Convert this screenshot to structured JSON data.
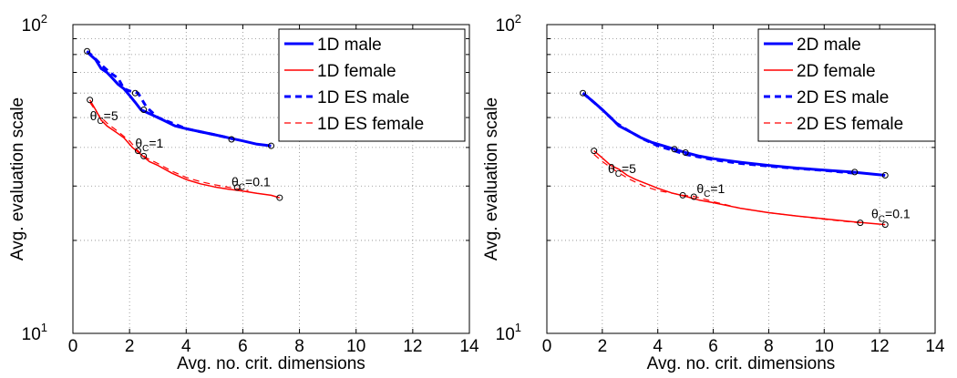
{
  "chart_data": [
    {
      "type": "line",
      "xlabel": "Avg. no. crit. dimensions",
      "ylabel": "Avg. evaluation scale",
      "xlim": [
        0,
        14
      ],
      "ylim": [
        10,
        100
      ],
      "yscale": "log",
      "grid": "dotted",
      "legend": "top-right",
      "xticks": [
        "0",
        "2",
        "4",
        "6",
        "8",
        "10",
        "12",
        "14"
      ],
      "yticks": [
        {
          "base": "10",
          "exp": "1"
        },
        {
          "base": "10",
          "exp": "2"
        }
      ],
      "colors": {
        "male": "#0000ff",
        "female": "#ff0000"
      },
      "series": [
        {
          "name": "1D male",
          "group": "male",
          "dash": "solid",
          "width": 3,
          "x": [
            0.5,
            0.6,
            0.8,
            1.0,
            1.2,
            1.4,
            1.6,
            1.8,
            2.0,
            2.2,
            2.4,
            2.8,
            3.2,
            3.6,
            4.0,
            4.5,
            5.0,
            5.5,
            6.0,
            6.5,
            7.0
          ],
          "y": [
            82,
            80,
            77,
            72,
            70,
            67,
            64,
            62,
            59,
            56,
            53,
            51,
            49,
            47,
            46,
            45,
            44,
            43,
            42,
            41,
            40.5
          ]
        },
        {
          "name": "1D female",
          "group": "female",
          "dash": "solid",
          "width": 1.5,
          "x": [
            0.6,
            0.8,
            1.0,
            1.2,
            1.5,
            1.8,
            2.1,
            2.4,
            2.7,
            3.0,
            3.5,
            4.0,
            4.5,
            5.0,
            5.5,
            6.0,
            6.5,
            7.0,
            7.3
          ],
          "y": [
            57,
            53,
            49,
            47,
            45,
            43,
            40,
            38,
            36,
            35,
            33,
            31.5,
            30.5,
            29.8,
            29.3,
            28.9,
            28.4,
            28,
            27.5
          ]
        },
        {
          "name": "1D ES male",
          "group": "male",
          "dash": "dashed",
          "width": 3,
          "x": [
            0.5,
            0.7,
            1.0,
            1.3,
            1.6,
            1.8,
            2.0,
            2.3,
            2.6,
            3.0,
            3.5,
            4.0,
            4.5,
            5.0,
            5.5,
            5.7
          ],
          "y": [
            82,
            79,
            74,
            70,
            67,
            62,
            61,
            60,
            54,
            50,
            48,
            46,
            45,
            44,
            43,
            42.5
          ]
        },
        {
          "name": "1D ES female",
          "group": "female",
          "dash": "dashed",
          "width": 1.2,
          "x": [
            0.6,
            0.9,
            1.2,
            1.6,
            2.0,
            2.3,
            2.6,
            3.0,
            3.5,
            4.0,
            4.5,
            5.0,
            5.6,
            6.2
          ],
          "y": [
            56,
            51,
            48,
            45,
            42,
            39,
            37,
            35.5,
            33.5,
            32,
            31,
            30.3,
            29.6,
            29
          ]
        }
      ],
      "markers": [
        {
          "group": "male",
          "points": [
            [
              0.5,
              82
            ],
            [
              2.2,
              60
            ],
            [
              2.5,
              53
            ],
            [
              5.6,
              42.5
            ],
            [
              7.0,
              40.5
            ]
          ]
        },
        {
          "group": "female",
          "points": [
            [
              0.6,
              57
            ],
            [
              2.3,
              39
            ],
            [
              2.5,
              37.5
            ],
            [
              5.8,
              29.7
            ],
            [
              7.3,
              27.5
            ]
          ]
        }
      ],
      "annotations": [
        {
          "base": "θ",
          "sub": "C",
          "value": "=5",
          "x": 0.6,
          "y": 49
        },
        {
          "base": "θ",
          "sub": "C",
          "value": "=1",
          "x": 2.2,
          "y": 40
        },
        {
          "base": "θ",
          "sub": "C",
          "value": "=0.1",
          "x": 5.6,
          "y": 30
        }
      ]
    },
    {
      "type": "line",
      "xlabel": "Avg. no. crit. dimensions",
      "ylabel": "Avg. evaluation scale",
      "xlim": [
        0,
        14
      ],
      "ylim": [
        10,
        100
      ],
      "yscale": "log",
      "grid": "dotted",
      "legend": "top-right",
      "xticks": [
        "0",
        "2",
        "4",
        "6",
        "8",
        "10",
        "12",
        "14"
      ],
      "yticks": [
        {
          "base": "10",
          "exp": "1"
        },
        {
          "base": "10",
          "exp": "2"
        }
      ],
      "colors": {
        "male": "#0000ff",
        "female": "#ff0000"
      },
      "series": [
        {
          "name": "2D male",
          "group": "male",
          "dash": "solid",
          "width": 3,
          "x": [
            1.3,
            1.5,
            1.8,
            2.0,
            2.3,
            2.6,
            3.0,
            3.4,
            3.8,
            4.2,
            4.6,
            5.0,
            5.5,
            6.0,
            7.0,
            8.0,
            9.0,
            10.0,
            11.0,
            12.2
          ],
          "y": [
            60,
            58,
            55,
            53,
            50,
            47,
            45,
            43,
            41.5,
            40.5,
            39.5,
            38.5,
            37.5,
            36.8,
            35.8,
            35,
            34.3,
            33.8,
            33.3,
            32.5
          ]
        },
        {
          "name": "2D female",
          "group": "female",
          "dash": "solid",
          "width": 1.5,
          "x": [
            1.7,
            2.0,
            2.3,
            2.6,
            2.9,
            3.2,
            3.6,
            4.0,
            4.5,
            5.0,
            5.5,
            6.0,
            7.0,
            8.0,
            9.0,
            10.0,
            11.0,
            11.5,
            12.2
          ],
          "y": [
            39,
            37,
            35,
            34,
            32.5,
            31.5,
            30.5,
            29.5,
            28.5,
            27.8,
            27,
            26.5,
            25.4,
            24.6,
            24,
            23.5,
            23,
            22.8,
            22.5
          ]
        },
        {
          "name": "2D ES male",
          "group": "male",
          "dash": "dashed",
          "width": 3,
          "x": [
            1.3,
            1.6,
            2.0,
            2.5,
            3.0,
            3.5,
            4.0,
            4.6,
            5.0,
            6.0,
            7.0,
            8.0,
            9.0,
            10.0,
            11.1
          ],
          "y": [
            60,
            57,
            53,
            48,
            45,
            42.5,
            40.5,
            39,
            38,
            36.5,
            35.5,
            34.8,
            34.2,
            33.7,
            33
          ]
        },
        {
          "name": "2D ES female",
          "group": "female",
          "dash": "dashed",
          "width": 1.2,
          "x": [
            1.7,
            2.0,
            2.5,
            3.0,
            3.5,
            4.0,
            4.9,
            5.3,
            6.0,
            7.0,
            8.0,
            9.0,
            10.0,
            11.3
          ],
          "y": [
            38,
            36,
            33.5,
            31.5,
            30,
            29,
            28,
            27.8,
            26.7,
            25.4,
            24.6,
            24,
            23.4,
            22.8
          ]
        }
      ],
      "markers": [
        {
          "group": "male",
          "points": [
            [
              1.3,
              60
            ],
            [
              4.6,
              39.5
            ],
            [
              5.0,
              38.5
            ],
            [
              11.1,
              33.3
            ],
            [
              12.2,
              32.5
            ]
          ]
        },
        {
          "group": "female",
          "points": [
            [
              1.7,
              39
            ],
            [
              4.9,
              28
            ],
            [
              5.3,
              27.7
            ],
            [
              11.3,
              22.8
            ],
            [
              12.2,
              22.5
            ]
          ]
        }
      ],
      "annotations": [
        {
          "base": "θ",
          "sub": "C",
          "value": "=5",
          "x": 2.2,
          "y": 33
        },
        {
          "base": "θ",
          "sub": "C",
          "value": "=1",
          "x": 5.4,
          "y": 28.5
        },
        {
          "base": "θ",
          "sub": "C",
          "value": "=0.1",
          "x": 11.7,
          "y": 23.6
        }
      ]
    }
  ]
}
